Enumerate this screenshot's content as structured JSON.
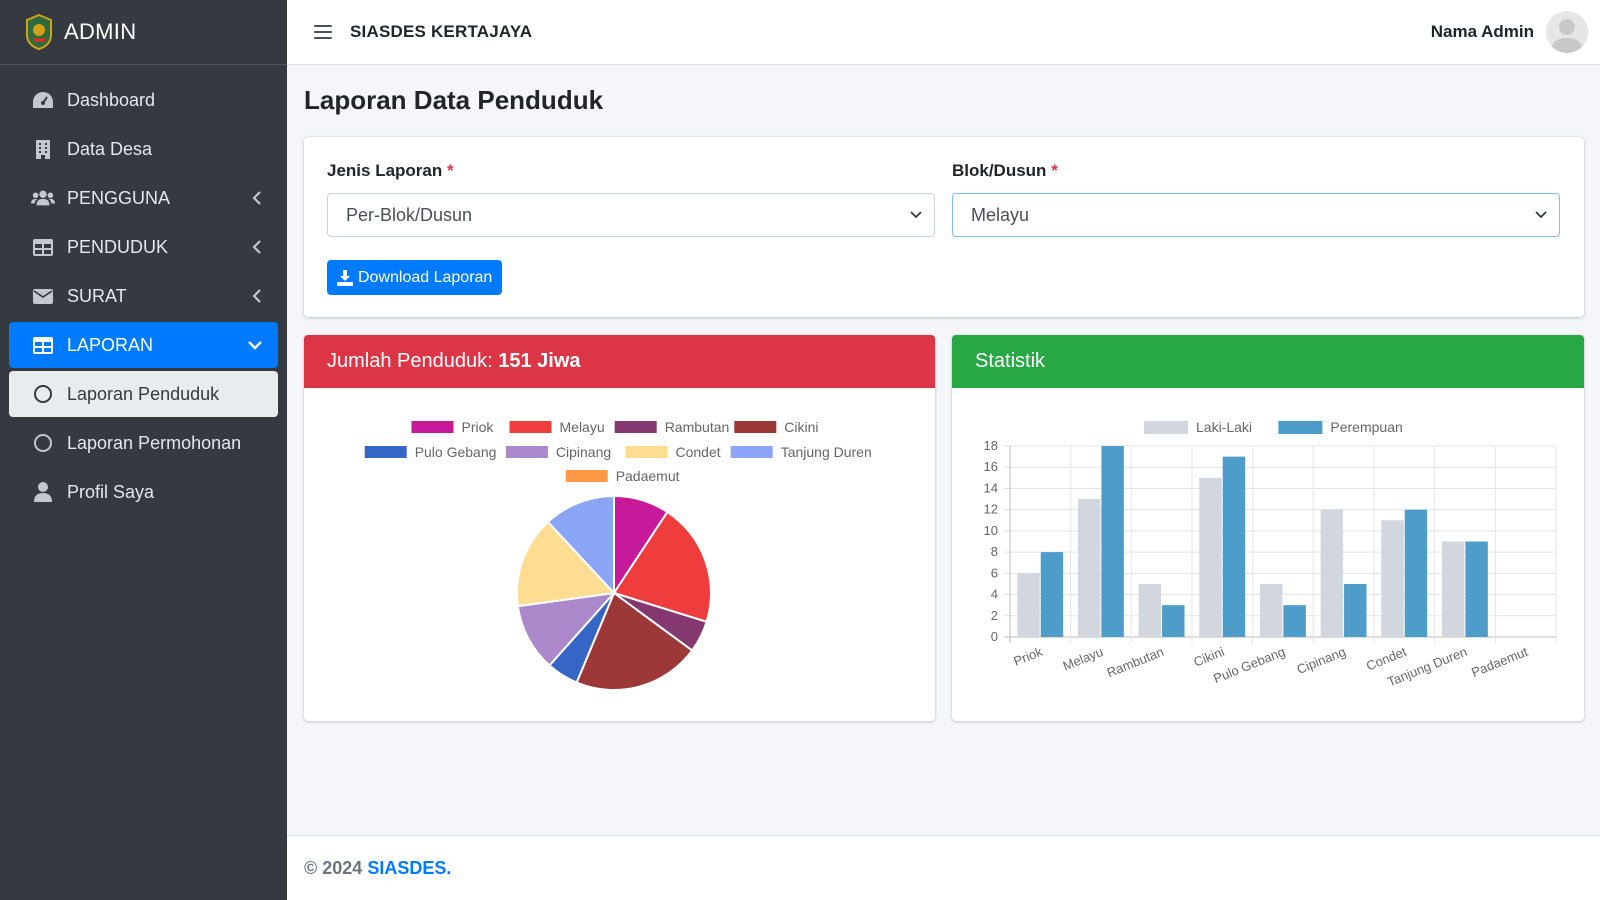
{
  "brand": {
    "title": "ADMIN"
  },
  "sidebar": {
    "items": [
      {
        "label": "Dashboard",
        "icon": "dashboard-icon"
      },
      {
        "label": "Data Desa",
        "icon": "building-icon"
      },
      {
        "label": "PENGGUNA",
        "icon": "users-icon"
      },
      {
        "label": "PENDUDUK",
        "icon": "table-icon"
      },
      {
        "label": "SURAT",
        "icon": "envelope-icon"
      },
      {
        "label": "LAPORAN",
        "icon": "table-icon"
      },
      {
        "label": "Laporan Penduduk",
        "icon": "circle-icon"
      },
      {
        "label": "Laporan Permohonan",
        "icon": "circle-icon"
      },
      {
        "label": "Profil Saya",
        "icon": "user-icon"
      }
    ]
  },
  "header": {
    "app_name": "SIASDES KERTAJAYA",
    "user_name": "Nama Admin"
  },
  "page": {
    "title": "Laporan Data Penduduk"
  },
  "filters": {
    "jenis_label": "Jenis Laporan",
    "jenis_value": "Per-Blok/Dusun",
    "blok_label": "Blok/Dusun",
    "blok_value": "Melayu",
    "required_mark": "*",
    "download_label": "Download Laporan"
  },
  "panels": {
    "population_prefix": "Jumlah Penduduk: ",
    "population_value": "151 Jiwa",
    "stats_title": "Statistik"
  },
  "footer": {
    "copyright": "© 2024",
    "link": "SIASDES."
  },
  "colors": {
    "primary": "#007bff",
    "danger": "#dc3545",
    "success": "#28a745",
    "sidebar": "#343a40"
  },
  "chart_data": [
    {
      "type": "pie",
      "categories": [
        "Priok",
        "Melayu",
        "Rambutan",
        "Cikini",
        "Pulo Gebang",
        "Cipinang",
        "Condet",
        "Tanjung Duren",
        "Padaemut"
      ],
      "values": [
        14,
        31,
        8,
        32,
        8,
        17,
        23,
        18,
        0
      ],
      "colors": [
        "#c71a9b",
        "#ef3d3d",
        "#85386f",
        "#9c3838",
        "#3566c6",
        "#ab88c9",
        "#fedc92",
        "#8aa5f6",
        "#fd9845"
      ],
      "legend": "top"
    },
    {
      "type": "bar",
      "categories": [
        "Priok",
        "Melayu",
        "Rambutan",
        "Cikini",
        "Pulo Gebang",
        "Cipinang",
        "Condet",
        "Tanjung Duren",
        "Padaemut"
      ],
      "series": [
        {
          "name": "Laki-Laki",
          "values": [
            6,
            13,
            5,
            15,
            5,
            12,
            11,
            9,
            0
          ],
          "color": "#d2d6de"
        },
        {
          "name": "Perempuan",
          "values": [
            8,
            18,
            3,
            17,
            3,
            5,
            12,
            9,
            0
          ],
          "color": "#4e9cc9"
        }
      ],
      "ylim": [
        0,
        18
      ],
      "yticks": [
        0,
        2,
        4,
        6,
        8,
        10,
        12,
        14,
        16,
        18
      ],
      "grid": true,
      "legend": "top"
    }
  ]
}
